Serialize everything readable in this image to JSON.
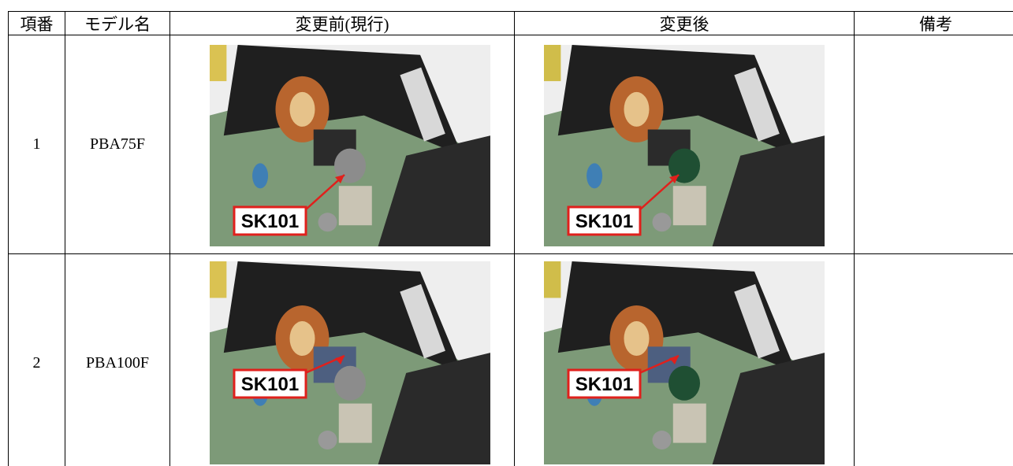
{
  "table": {
    "headers": [
      "項番",
      "モデル名",
      "変更前(現行)",
      "変更後",
      "備考"
    ],
    "rows": [
      {
        "cells": [
          "1",
          "PBA75F"
        ],
        "photo_labels": [
          "SK101",
          "SK101"
        ]
      },
      {
        "cells": [
          "2",
          "PBA100F"
        ],
        "photo_labels": [
          "SK101",
          "SK101"
        ]
      }
    ]
  }
}
